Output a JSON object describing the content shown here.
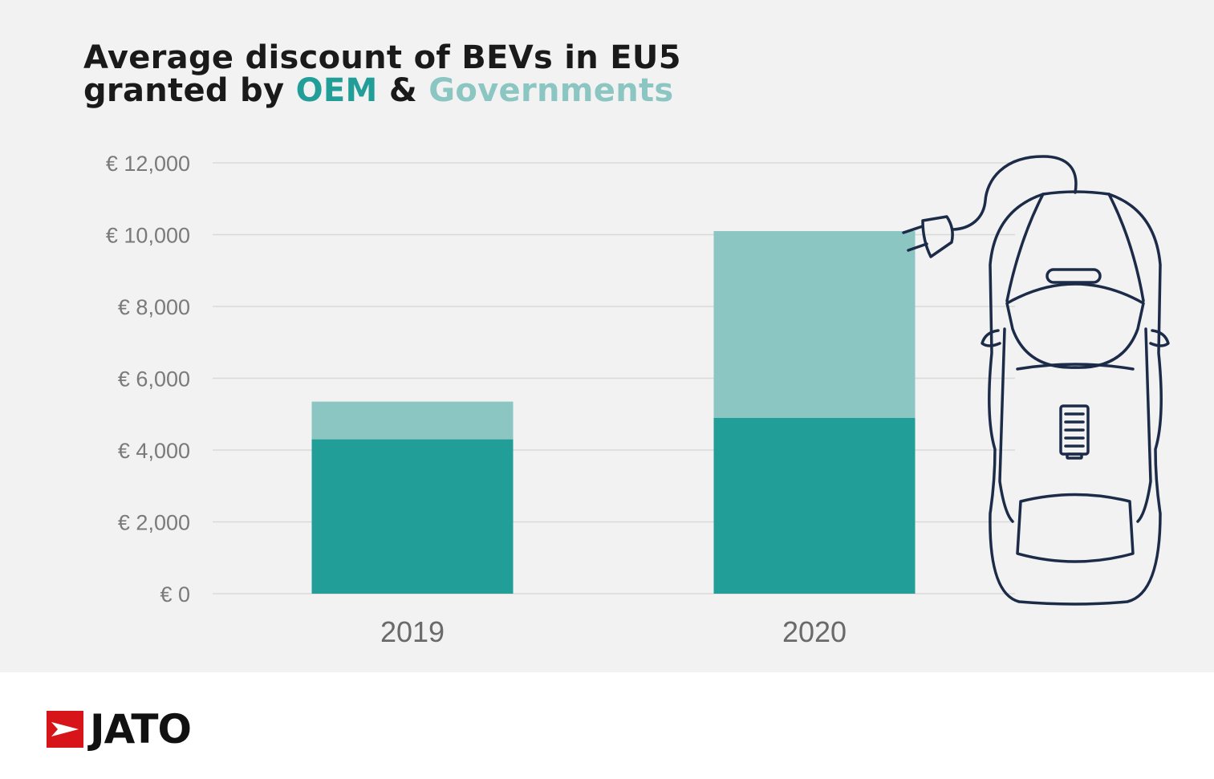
{
  "title": {
    "line1": "Average discount of BEVs in EU5",
    "line2_prefix": "granted by ",
    "oem_word": "OEM",
    "amp": " & ",
    "gov_word": "Governments"
  },
  "colors": {
    "oem": "#229e99",
    "governments": "#8bc6c3",
    "background": "#f2f2f2",
    "grid": "#d9d9d9",
    "logo_red": "#d7141a"
  },
  "chart_data": {
    "type": "bar",
    "stacked": true,
    "categories": [
      "2019",
      "2020"
    ],
    "series": [
      {
        "name": "OEM",
        "values": [
          4300,
          4900
        ]
      },
      {
        "name": "Governments",
        "values": [
          1050,
          5200
        ]
      }
    ],
    "ylim": [
      0,
      12000
    ],
    "yticks": [
      0,
      2000,
      4000,
      6000,
      8000,
      10000,
      12000
    ],
    "ytick_labels": [
      "€ 0",
      "€ 2,000",
      "€ 4,000",
      "€ 6,000",
      "€ 8,000",
      "€ 10,000",
      "€ 12,000"
    ],
    "grid": true,
    "legend": "none (series named by colored words in title)"
  },
  "illustration": {
    "icon": "electric-car-icon"
  },
  "logo": {
    "text": "JATO",
    "icon": "jato-flag-icon"
  }
}
